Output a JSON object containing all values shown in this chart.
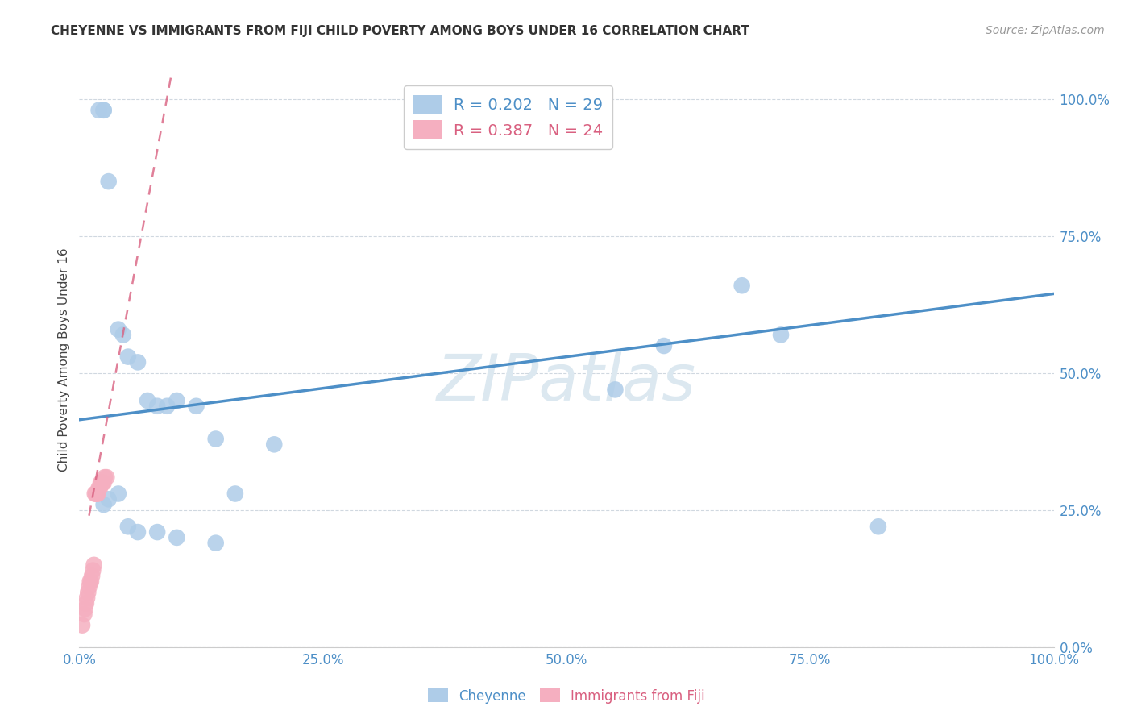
{
  "title": "CHEYENNE VS IMMIGRANTS FROM FIJI CHILD POVERTY AMONG BOYS UNDER 16 CORRELATION CHART",
  "source": "Source: ZipAtlas.com",
  "ylabel": "Child Poverty Among Boys Under 16",
  "cheyenne_R": 0.202,
  "cheyenne_N": 29,
  "fiji_R": 0.387,
  "fiji_N": 24,
  "cheyenne_color": "#aecce8",
  "fiji_color": "#f5afc0",
  "cheyenne_line_color": "#4d8fc7",
  "fiji_line_color": "#d96080",
  "background_color": "#ffffff",
  "cheyenne_x": [
    0.02,
    0.025,
    0.025,
    0.03,
    0.04,
    0.045,
    0.05,
    0.06,
    0.07,
    0.08,
    0.09,
    0.1,
    0.12,
    0.14,
    0.16,
    0.2,
    0.55,
    0.6,
    0.68,
    0.72,
    0.82,
    0.025,
    0.03,
    0.04,
    0.05,
    0.06,
    0.08,
    0.1,
    0.14
  ],
  "cheyenne_y": [
    0.98,
    0.98,
    0.98,
    0.85,
    0.58,
    0.57,
    0.53,
    0.52,
    0.45,
    0.44,
    0.44,
    0.45,
    0.44,
    0.38,
    0.28,
    0.37,
    0.47,
    0.55,
    0.66,
    0.57,
    0.22,
    0.26,
    0.27,
    0.28,
    0.22,
    0.21,
    0.21,
    0.2,
    0.19
  ],
  "fiji_x": [
    0.003,
    0.005,
    0.006,
    0.007,
    0.008,
    0.009,
    0.01,
    0.011,
    0.012,
    0.013,
    0.014,
    0.015,
    0.016,
    0.017,
    0.018,
    0.019,
    0.02,
    0.021,
    0.022,
    0.023,
    0.024,
    0.025,
    0.026,
    0.028
  ],
  "fiji_y": [
    0.04,
    0.06,
    0.07,
    0.08,
    0.09,
    0.1,
    0.11,
    0.12,
    0.12,
    0.13,
    0.14,
    0.15,
    0.28,
    0.28,
    0.28,
    0.28,
    0.29,
    0.29,
    0.3,
    0.3,
    0.3,
    0.3,
    0.31,
    0.31
  ],
  "cheyenne_line_x": [
    0.0,
    1.0
  ],
  "cheyenne_line_y": [
    0.415,
    0.645
  ],
  "fiji_line_x0": 0.0,
  "fiji_line_y0": 0.0,
  "fiji_line_slope": 15.0,
  "ytick_labels": [
    "0.0%",
    "25.0%",
    "50.0%",
    "75.0%",
    "100.0%"
  ],
  "ytick_values": [
    0.0,
    0.25,
    0.5,
    0.75,
    1.0
  ],
  "xtick_labels": [
    "0.0%",
    "25.0%",
    "50.0%",
    "75.0%",
    "100.0%"
  ],
  "xtick_values": [
    0.0,
    0.25,
    0.5,
    0.75,
    1.0
  ],
  "watermark": "ZIPatlas"
}
